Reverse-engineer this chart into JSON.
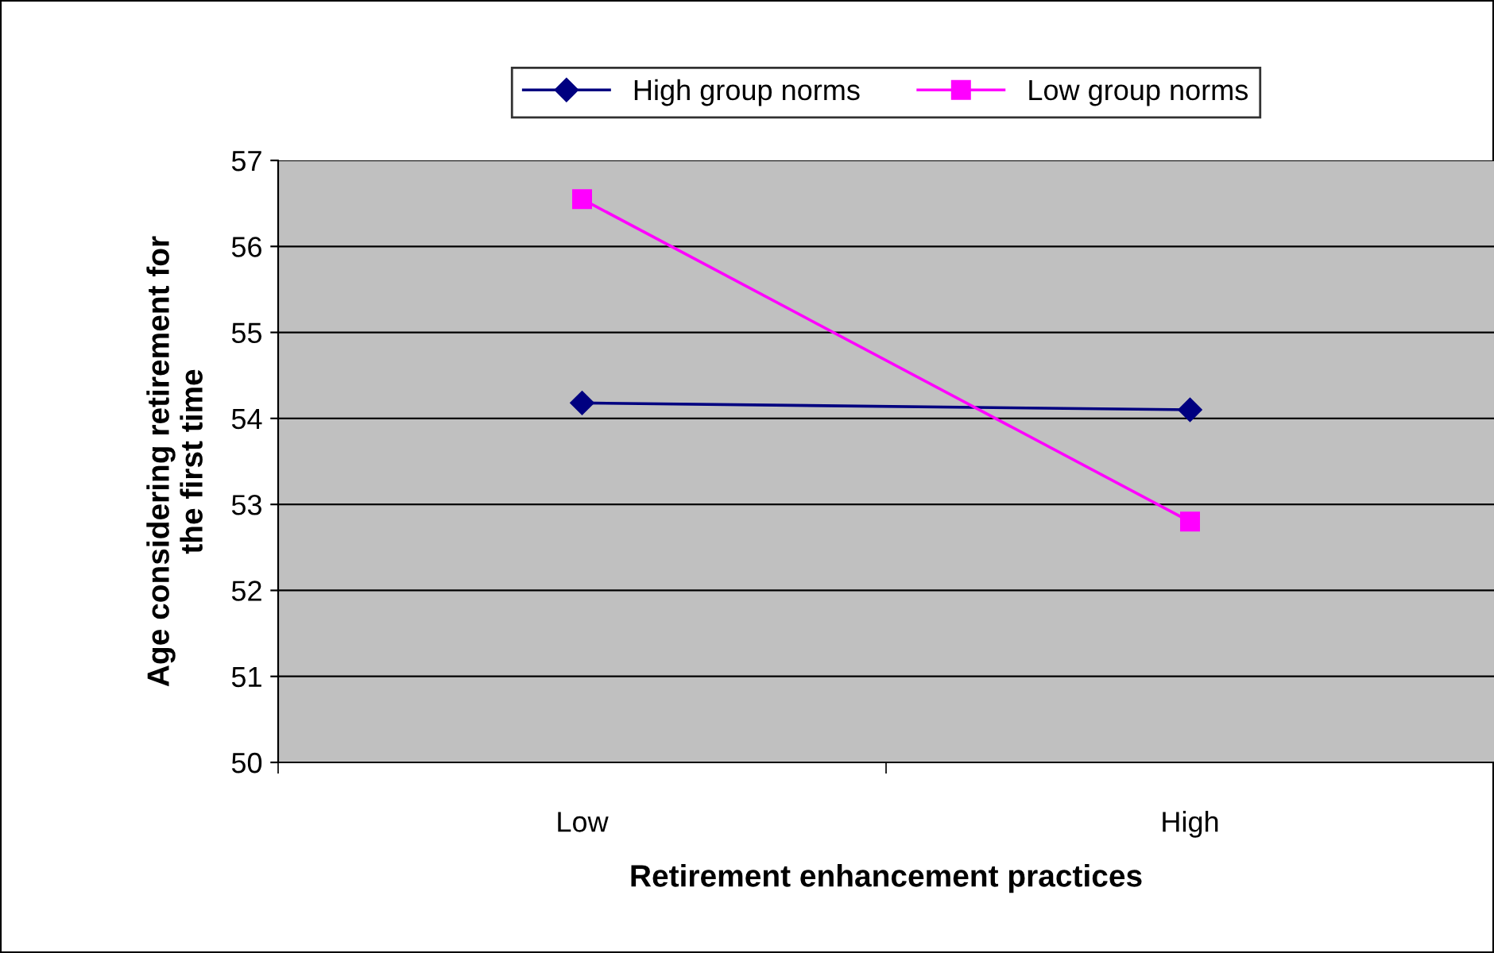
{
  "chart_data": {
    "type": "line",
    "xlabel": "Retirement enhancement practices",
    "ylabel": "Age considering retirement for\nthe first time",
    "categories": [
      "Low",
      "High"
    ],
    "series": [
      {
        "name": "High group norms",
        "color": "#000080",
        "marker": "diamond",
        "values": [
          54.18,
          54.1
        ]
      },
      {
        "name": "Low group norms",
        "color": "#ff00ff",
        "marker": "square",
        "values": [
          56.55,
          52.8
        ]
      }
    ],
    "ylim": [
      50,
      57
    ],
    "yticks": [
      50,
      51,
      52,
      53,
      54,
      55,
      56,
      57
    ],
    "grid": "y",
    "legend": "top",
    "line_style": "solid"
  }
}
